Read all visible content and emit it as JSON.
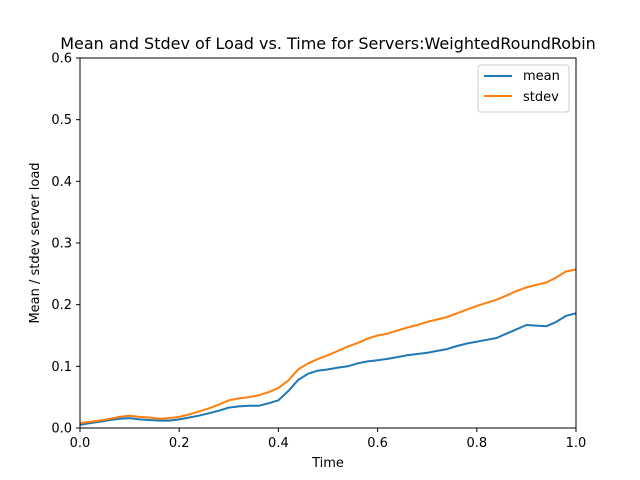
{
  "chart_data": {
    "type": "line",
    "title": "Mean and Stdev of Load vs. Time for Servers:WeightedRoundRobin",
    "xlabel": "Time",
    "ylabel": "Mean / stdev server load",
    "xlim": [
      0,
      1
    ],
    "ylim": [
      0,
      0.6
    ],
    "x_ticks": [
      "0.0",
      "0.2",
      "0.4",
      "0.6",
      "0.8",
      "1.0"
    ],
    "y_ticks": [
      "0.0",
      "0.1",
      "0.2",
      "0.3",
      "0.4",
      "0.5",
      "0.6"
    ],
    "grid": false,
    "legend_position": "top-right",
    "series": [
      {
        "name": "mean",
        "color": "#1f77b4",
        "x": [
          0.0,
          0.02,
          0.04,
          0.06,
          0.08,
          0.1,
          0.12,
          0.14,
          0.16,
          0.18,
          0.2,
          0.22,
          0.24,
          0.26,
          0.28,
          0.3,
          0.32,
          0.34,
          0.36,
          0.38,
          0.4,
          0.42,
          0.44,
          0.46,
          0.48,
          0.5,
          0.52,
          0.54,
          0.56,
          0.58,
          0.6,
          0.62,
          0.64,
          0.66,
          0.68,
          0.7,
          0.72,
          0.74,
          0.76,
          0.78,
          0.8,
          0.82,
          0.84,
          0.86,
          0.88,
          0.9,
          0.92,
          0.94,
          0.96,
          0.98,
          1.0
        ],
        "values": [
          0.005,
          0.008,
          0.01,
          0.013,
          0.015,
          0.016,
          0.014,
          0.013,
          0.012,
          0.012,
          0.014,
          0.017,
          0.02,
          0.024,
          0.028,
          0.033,
          0.035,
          0.036,
          0.036,
          0.04,
          0.045,
          0.06,
          0.078,
          0.088,
          0.093,
          0.095,
          0.098,
          0.1,
          0.105,
          0.108,
          0.11,
          0.112,
          0.115,
          0.118,
          0.12,
          0.122,
          0.125,
          0.128,
          0.133,
          0.137,
          0.14,
          0.143,
          0.146,
          0.153,
          0.16,
          0.167,
          0.166,
          0.165,
          0.172,
          0.182,
          0.186
        ]
      },
      {
        "name": "stdev",
        "color": "#ff7f0e",
        "x": [
          0.0,
          0.02,
          0.04,
          0.06,
          0.08,
          0.1,
          0.12,
          0.14,
          0.16,
          0.18,
          0.2,
          0.22,
          0.24,
          0.26,
          0.28,
          0.3,
          0.32,
          0.34,
          0.36,
          0.38,
          0.4,
          0.42,
          0.44,
          0.46,
          0.48,
          0.5,
          0.52,
          0.54,
          0.56,
          0.58,
          0.6,
          0.62,
          0.64,
          0.66,
          0.68,
          0.7,
          0.72,
          0.74,
          0.76,
          0.78,
          0.8,
          0.82,
          0.84,
          0.86,
          0.88,
          0.9,
          0.92,
          0.94,
          0.96,
          0.98,
          1.0
        ],
        "values": [
          0.008,
          0.01,
          0.012,
          0.015,
          0.018,
          0.02,
          0.018,
          0.017,
          0.015,
          0.016,
          0.018,
          0.022,
          0.027,
          0.032,
          0.038,
          0.045,
          0.048,
          0.05,
          0.053,
          0.058,
          0.065,
          0.077,
          0.095,
          0.105,
          0.112,
          0.118,
          0.125,
          0.132,
          0.138,
          0.145,
          0.15,
          0.153,
          0.158,
          0.163,
          0.167,
          0.172,
          0.176,
          0.18,
          0.186,
          0.192,
          0.198,
          0.203,
          0.208,
          0.215,
          0.222,
          0.228,
          0.232,
          0.236,
          0.244,
          0.254,
          0.257
        ]
      }
    ]
  }
}
